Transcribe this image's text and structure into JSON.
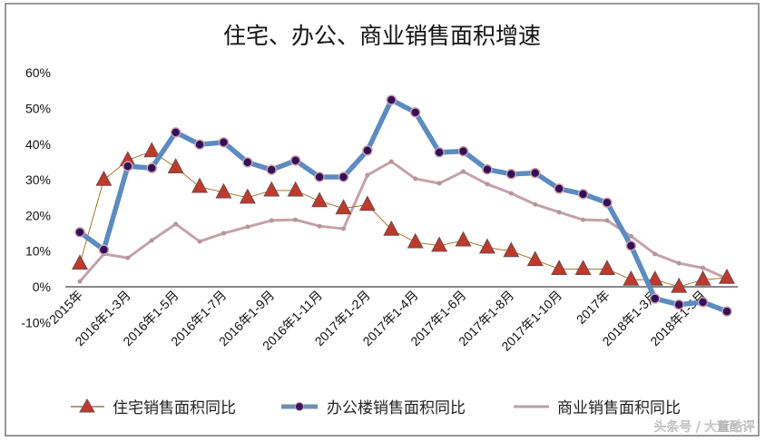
{
  "chart_data": {
    "type": "line",
    "title": "住宅、办公、商业销售面积增速",
    "xlabel": "",
    "ylabel": "",
    "ylim": [
      -0.1,
      0.6
    ],
    "y_ticks": [
      "60%",
      "50%",
      "40%",
      "30%",
      "20%",
      "10%",
      "0%",
      "-10%"
    ],
    "tick_labels": [
      "2015年",
      "2016年1-3月",
      "2016年1-5月",
      "2016年1-7月",
      "2016年1-9月",
      "2016年1-11月",
      "2017年1-2月",
      "2017年1-4月",
      "2017年1-6月",
      "2017年1-8月",
      "2017年1-10月",
      "2017年",
      "2018年1-3月",
      "2018年1-5月"
    ],
    "grid": false,
    "legend_position": "bottom",
    "series": [
      {
        "name": "住宅销售面积同比",
        "color": "#c0392b",
        "marker": "triangle",
        "values": [
          6.5,
          30,
          35.5,
          38,
          33.5,
          28,
          26.5,
          25,
          27,
          27,
          24,
          22,
          23,
          16,
          12.5,
          11.5,
          13,
          11,
          10,
          7.5,
          5,
          5,
          5,
          2,
          2,
          0,
          2,
          2.5
        ]
      },
      {
        "name": "办公楼销售面积同比",
        "color": "#5b8bc0",
        "marker": "circle",
        "values": [
          15.3,
          10.4,
          33.8,
          33.3,
          43.3,
          39.9,
          40.5,
          34.9,
          32.8,
          35.4,
          30.8,
          30.8,
          38.2,
          52.4,
          48.9,
          37.7,
          38,
          32.9,
          31.6,
          31.9,
          27.5,
          26,
          23.6,
          11.5,
          -3.3,
          -5,
          -4.3,
          -6.9
        ]
      },
      {
        "name": "商业销售面积同比",
        "color": "#c9a0a8",
        "marker": "small",
        "values": [
          1.5,
          9.2,
          8.1,
          13,
          17.6,
          12.7,
          15,
          16.8,
          18.6,
          18.8,
          17,
          16.3,
          31.3,
          35.1,
          30.3,
          29,
          32.3,
          28.8,
          26.2,
          23.1,
          20.9,
          18.8,
          18.6,
          14.2,
          9.2,
          6.6,
          5.3,
          2.3
        ]
      }
    ]
  },
  "watermark": "头条号 / 大董酷评"
}
